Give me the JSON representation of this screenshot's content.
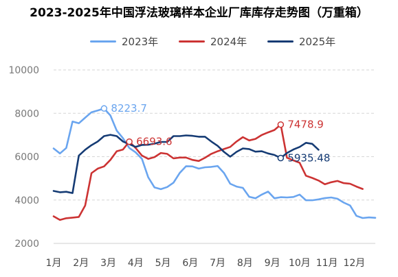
{
  "chart_data": {
    "type": "line",
    "title": "2023-2025年中国浮法玻璃样本企业厂库库存走势图（万重箱）",
    "xlabel": "",
    "ylabel": "",
    "ylim": [
      2000,
      10000
    ],
    "yticks": [
      2000,
      4000,
      6000,
      8000,
      10000
    ],
    "xticks": [
      "1月",
      "2月",
      "3月",
      "4月",
      "5月",
      "6月",
      "7月",
      "8月",
      "9月",
      "10月",
      "11月",
      "12月"
    ],
    "grid": "horizontal dashed",
    "legend_position": "top",
    "series": [
      {
        "name": "2023年",
        "color": "#6aa5ef",
        "values": [
          6380,
          6150,
          6400,
          7620,
          7540,
          7800,
          8050,
          8130,
          8223.7,
          7900,
          7200,
          6850,
          6400,
          6200,
          5900,
          5050,
          4580,
          4500,
          4600,
          4800,
          5250,
          5560,
          5550,
          5450,
          5510,
          5530,
          5570,
          5250,
          4750,
          4620,
          4560,
          4150,
          4080,
          4250,
          4390,
          4080,
          4130,
          4120,
          4140,
          4250,
          3990,
          3990,
          4030,
          4090,
          4120,
          4060,
          3880,
          3750,
          3270,
          3170,
          3200,
          3180
        ]
      },
      {
        "name": "2024年",
        "color": "#cc3333",
        "values": [
          3250,
          3080,
          3160,
          3190,
          3220,
          3750,
          5240,
          5450,
          5550,
          5850,
          6250,
          6330,
          6693.6,
          6400,
          6050,
          5900,
          5980,
          6170,
          6130,
          5920,
          5960,
          5960,
          5850,
          5800,
          5950,
          6130,
          6250,
          6350,
          6450,
          6700,
          6900,
          6750,
          6820,
          7000,
          7120,
          7230,
          7478.9,
          5950,
          5830,
          5720,
          5120,
          5020,
          4900,
          4730,
          4820,
          4880,
          4780,
          4750,
          4620,
          4510
        ]
      },
      {
        "name": "2025年",
        "color": "#153b74",
        "values": [
          4420,
          4360,
          4380,
          4320,
          6050,
          6320,
          6530,
          6700,
          6950,
          7010,
          6950,
          6700,
          6580,
          6450,
          6540,
          6550,
          6600,
          6680,
          6680,
          6950,
          6950,
          6980,
          6960,
          6920,
          6920,
          6700,
          6500,
          6220,
          6000,
          6220,
          6380,
          6350,
          6230,
          6250,
          6150,
          6080,
          5935.48,
          6170,
          6330,
          6450,
          6640,
          6590,
          6320
        ]
      }
    ],
    "annotations": [
      {
        "series": 0,
        "index": 8,
        "text": "8223.7",
        "color": "#6aa5ef"
      },
      {
        "series": 1,
        "index": 12,
        "text": "6693.6",
        "color": "#cc3333"
      },
      {
        "series": 1,
        "index": 36,
        "text": "7478.9",
        "color": "#cc3333"
      },
      {
        "series": 2,
        "index": 36,
        "text": "5935.48",
        "color": "#153b74"
      }
    ]
  }
}
